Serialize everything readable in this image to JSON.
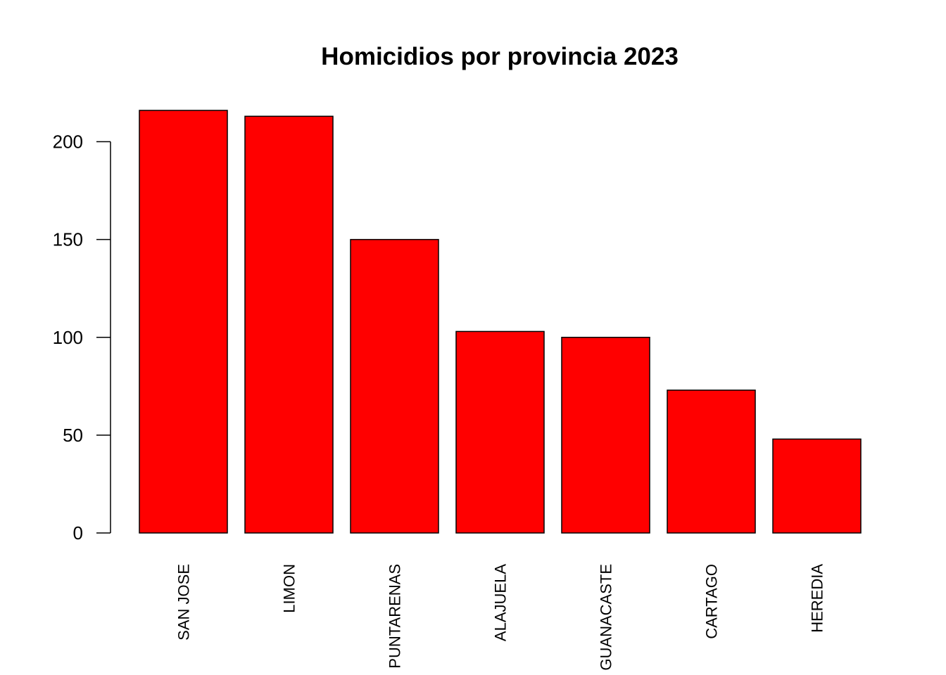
{
  "chart_data": {
    "type": "bar",
    "title": "Homicidios por provincia 2023",
    "xlabel": "",
    "ylabel": "",
    "categories": [
      "SAN JOSE",
      "LIMON",
      "PUNTARENAS",
      "ALAJUELA",
      "GUANACASTE",
      "CARTAGO",
      "HEREDIA"
    ],
    "values": [
      216,
      213,
      150,
      103,
      100,
      73,
      48
    ],
    "ylim": [
      0,
      216
    ],
    "yticks": [
      0,
      50,
      100,
      150,
      200
    ],
    "ytick_labels": [
      "0",
      "50",
      "100",
      "150",
      "200"
    ],
    "bar_color": "#ff0000",
    "bar_border_color": "#000000",
    "x_label_orientation": "vertical",
    "grid": false,
    "legend": "none"
  }
}
